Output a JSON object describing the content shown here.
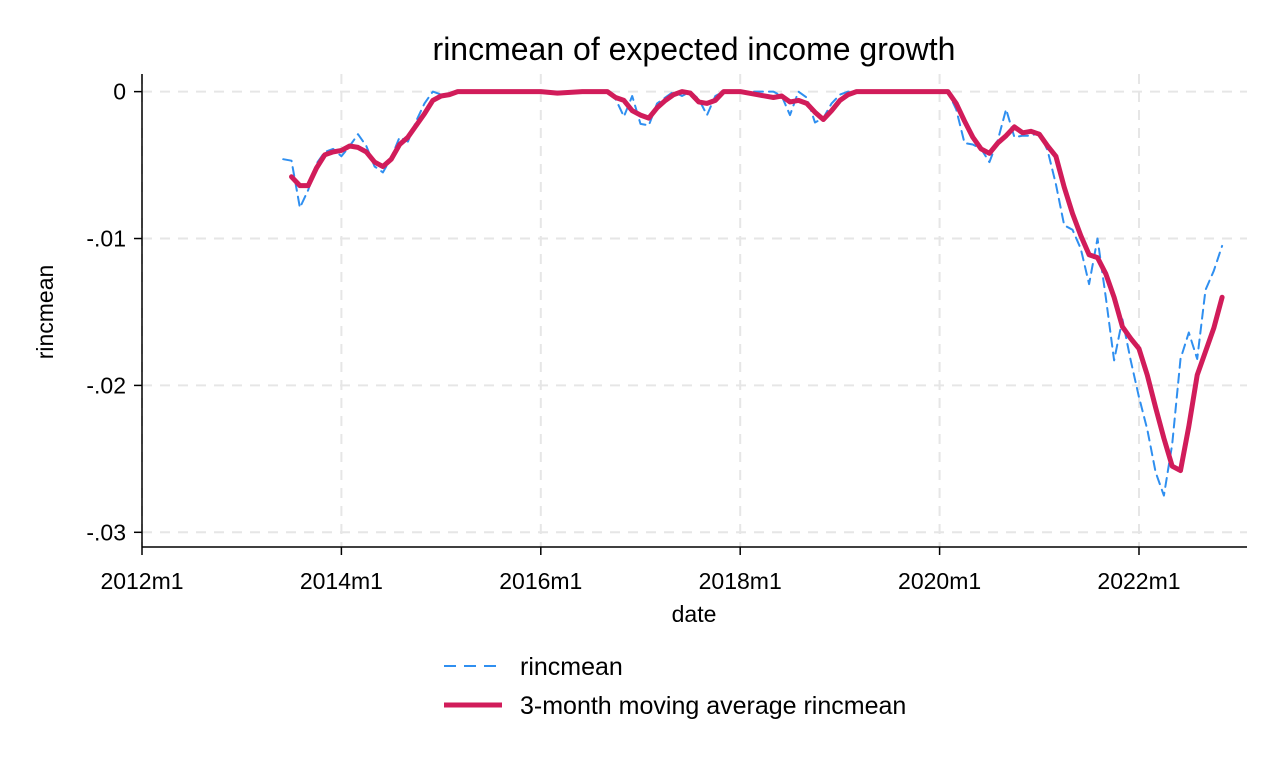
{
  "chart_data": {
    "type": "line",
    "title": "rincmean of expected income growth",
    "xlabel": "date",
    "ylabel": "rincmean",
    "xlim": [
      "2012m1",
      "2023m2"
    ],
    "ylim": [
      -0.031,
      0.0012
    ],
    "x_ticks": [
      {
        "value": "2012m1",
        "label": "2012m1"
      },
      {
        "value": "2014m1",
        "label": "2014m1"
      },
      {
        "value": "2016m1",
        "label": "2016m1"
      },
      {
        "value": "2018m1",
        "label": "2018m1"
      },
      {
        "value": "2020m1",
        "label": "2020m1"
      },
      {
        "value": "2022m1",
        "label": "2022m1"
      }
    ],
    "y_ticks": [
      {
        "value": 0,
        "label": "0"
      },
      {
        "value": -0.01,
        "label": "-.01"
      },
      {
        "value": -0.02,
        "label": "-.02"
      },
      {
        "value": -0.03,
        "label": "-.03"
      }
    ],
    "grid": true,
    "legend_position": "bottom",
    "series": [
      {
        "name": "rincmean",
        "color": "#2f8ff0",
        "style": "dashed",
        "points": [
          [
            "2013m6",
            -0.0046
          ],
          [
            "2013m7",
            -0.0047
          ],
          [
            "2013m8",
            -0.0079
          ],
          [
            "2013m9",
            -0.0067
          ],
          [
            "2013m10",
            -0.0049
          ],
          [
            "2013m11",
            -0.0041
          ],
          [
            "2013m12",
            -0.0039
          ],
          [
            "2014m1",
            -0.0044
          ],
          [
            "2014m2",
            -0.0037
          ],
          [
            "2014m3",
            -0.0029
          ],
          [
            "2014m4",
            -0.0037
          ],
          [
            "2014m5",
            -0.0051
          ],
          [
            "2014m6",
            -0.0055
          ],
          [
            "2014m7",
            -0.0045
          ],
          [
            "2014m8",
            -0.0031
          ],
          [
            "2014m9",
            -0.0034
          ],
          [
            "2014m10",
            -0.002
          ],
          [
            "2014m11",
            -0.0008
          ],
          [
            "2014m12",
            0.0
          ],
          [
            "2015m1",
            -0.0002
          ],
          [
            "2015m2",
            -0.0002
          ],
          [
            "2015m3",
            0.0
          ],
          [
            "2015m6",
            0.0
          ],
          [
            "2016m1",
            0.0
          ],
          [
            "2016m6",
            0.0
          ],
          [
            "2016m9",
            0.0
          ],
          [
            "2016m10",
            -0.0005
          ],
          [
            "2016m11",
            -0.0017
          ],
          [
            "2016m12",
            -0.0003
          ],
          [
            "2017m1",
            -0.0022
          ],
          [
            "2017m2",
            -0.0023
          ],
          [
            "2017m3",
            -0.0008
          ],
          [
            "2017m4",
            -0.0004
          ],
          [
            "2017m5",
            0.0
          ],
          [
            "2017m6",
            -0.0003
          ],
          [
            "2017m7",
            0.0
          ],
          [
            "2017m8",
            -0.0005
          ],
          [
            "2017m9",
            -0.0016
          ],
          [
            "2017m10",
            -0.0003
          ],
          [
            "2017m11",
            0.0
          ],
          [
            "2018m1",
            0.0
          ],
          [
            "2018m5",
            0.0
          ],
          [
            "2018m6",
            -0.0003
          ],
          [
            "2018m7",
            -0.0016
          ],
          [
            "2018m8",
            0.0
          ],
          [
            "2018m9",
            -0.0004
          ],
          [
            "2018m10",
            -0.0021
          ],
          [
            "2018m11",
            -0.0018
          ],
          [
            "2018m12",
            -0.0008
          ],
          [
            "2019m1",
            -0.0002
          ],
          [
            "2019m2",
            0.0
          ],
          [
            "2020m1",
            0.0
          ],
          [
            "2020m2",
            0.0
          ],
          [
            "2020m3",
            -0.0012
          ],
          [
            "2020m4",
            -0.0035
          ],
          [
            "2020m5",
            -0.0036
          ],
          [
            "2020m6",
            -0.0039
          ],
          [
            "2020m7",
            -0.0048
          ],
          [
            "2020m8",
            -0.0033
          ],
          [
            "2020m9",
            -0.0012
          ],
          [
            "2020m10",
            -0.0031
          ],
          [
            "2020m11",
            -0.003
          ],
          [
            "2020m12",
            -0.003
          ],
          [
            "2021m1",
            -0.0028
          ],
          [
            "2021m2",
            -0.004
          ],
          [
            "2021m3",
            -0.0063
          ],
          [
            "2021m4",
            -0.0091
          ],
          [
            "2021m5",
            -0.0094
          ],
          [
            "2021m6",
            -0.0107
          ],
          [
            "2021m7",
            -0.0131
          ],
          [
            "2021m8",
            -0.01
          ],
          [
            "2021m9",
            -0.014
          ],
          [
            "2021m10",
            -0.0183
          ],
          [
            "2021m11",
            -0.0155
          ],
          [
            "2021m12",
            -0.0183
          ],
          [
            "2022m1",
            -0.0208
          ],
          [
            "2022m2",
            -0.023
          ],
          [
            "2022m3",
            -0.0259
          ],
          [
            "2022m4",
            -0.0275
          ],
          [
            "2022m5",
            -0.024
          ],
          [
            "2022m6",
            -0.0182
          ],
          [
            "2022m7",
            -0.0164
          ],
          [
            "2022m8",
            -0.0182
          ],
          [
            "2022m9",
            -0.0135
          ],
          [
            "2022m10",
            -0.0122
          ],
          [
            "2022m11",
            -0.0105
          ]
        ]
      },
      {
        "name": "3-month moving average rincmean",
        "color": "#d11c5a",
        "style": "solid",
        "points": [
          [
            "2013m7",
            -0.0058
          ],
          [
            "2013m8",
            -0.0064
          ],
          [
            "2013m9",
            -0.0064
          ],
          [
            "2013m10",
            -0.0052
          ],
          [
            "2013m11",
            -0.0043
          ],
          [
            "2013m12",
            -0.0041
          ],
          [
            "2014m1",
            -0.004
          ],
          [
            "2014m2",
            -0.0037
          ],
          [
            "2014m3",
            -0.0038
          ],
          [
            "2014m4",
            -0.0041
          ],
          [
            "2014m5",
            -0.0048
          ],
          [
            "2014m6",
            -0.0051
          ],
          [
            "2014m7",
            -0.0046
          ],
          [
            "2014m8",
            -0.0036
          ],
          [
            "2014m9",
            -0.0031
          ],
          [
            "2014m10",
            -0.0023
          ],
          [
            "2014m11",
            -0.0015
          ],
          [
            "2014m12",
            -0.0006
          ],
          [
            "2015m1",
            -0.0003
          ],
          [
            "2015m2",
            -0.0002
          ],
          [
            "2015m3",
            0.0
          ],
          [
            "2015m6",
            0.0
          ],
          [
            "2016m1",
            0.0
          ],
          [
            "2016m3",
            -0.0001
          ],
          [
            "2016m6",
            0.0
          ],
          [
            "2016m9",
            0.0
          ],
          [
            "2016m10",
            -0.0004
          ],
          [
            "2016m11",
            -0.0006
          ],
          [
            "2016m12",
            -0.0013
          ],
          [
            "2017m1",
            -0.0016
          ],
          [
            "2017m2",
            -0.0018
          ],
          [
            "2017m3",
            -0.0011
          ],
          [
            "2017m4",
            -0.0006
          ],
          [
            "2017m5",
            -0.0002
          ],
          [
            "2017m6",
            0.0
          ],
          [
            "2017m7",
            -0.0001
          ],
          [
            "2017m8",
            -0.0007
          ],
          [
            "2017m9",
            -0.0008
          ],
          [
            "2017m10",
            -0.0006
          ],
          [
            "2017m11",
            0.0
          ],
          [
            "2018m1",
            0.0
          ],
          [
            "2018m3",
            -0.0002
          ],
          [
            "2018m5",
            -0.0004
          ],
          [
            "2018m6",
            -0.0003
          ],
          [
            "2018m7",
            -0.0007
          ],
          [
            "2018m8",
            -0.0006
          ],
          [
            "2018m9",
            -0.0008
          ],
          [
            "2018m10",
            -0.0014
          ],
          [
            "2018m11",
            -0.0019
          ],
          [
            "2018m12",
            -0.0013
          ],
          [
            "2019m1",
            -0.0006
          ],
          [
            "2019m2",
            -0.0002
          ],
          [
            "2019m3",
            0.0
          ],
          [
            "2020m1",
            0.0
          ],
          [
            "2020m2",
            0.0
          ],
          [
            "2020m3",
            -0.0008
          ],
          [
            "2020m4",
            -0.002
          ],
          [
            "2020m5",
            -0.0031
          ],
          [
            "2020m6",
            -0.0039
          ],
          [
            "2020m7",
            -0.0042
          ],
          [
            "2020m8",
            -0.0035
          ],
          [
            "2020m9",
            -0.003
          ],
          [
            "2020m10",
            -0.0024
          ],
          [
            "2020m11",
            -0.0028
          ],
          [
            "2020m12",
            -0.0027
          ],
          [
            "2021m1",
            -0.0029
          ],
          [
            "2021m2",
            -0.0037
          ],
          [
            "2021m3",
            -0.0044
          ],
          [
            "2021m4",
            -0.0065
          ],
          [
            "2021m5",
            -0.0083
          ],
          [
            "2021m6",
            -0.0098
          ],
          [
            "2021m7",
            -0.0111
          ],
          [
            "2021m8",
            -0.0113
          ],
          [
            "2021m9",
            -0.0124
          ],
          [
            "2021m10",
            -0.014
          ],
          [
            "2021m11",
            -0.016
          ],
          [
            "2021m12",
            -0.0168
          ],
          [
            "2022m1",
            -0.0175
          ],
          [
            "2022m2",
            -0.0193
          ],
          [
            "2022m3",
            -0.0215
          ],
          [
            "2022m4",
            -0.0236
          ],
          [
            "2022m5",
            -0.0255
          ],
          [
            "2022m6",
            -0.0258
          ],
          [
            "2022m7",
            -0.0228
          ],
          [
            "2022m8",
            -0.0193
          ],
          [
            "2022m9",
            -0.0177
          ],
          [
            "2022m10",
            -0.0161
          ],
          [
            "2022m11",
            -0.014
          ]
        ]
      }
    ]
  }
}
